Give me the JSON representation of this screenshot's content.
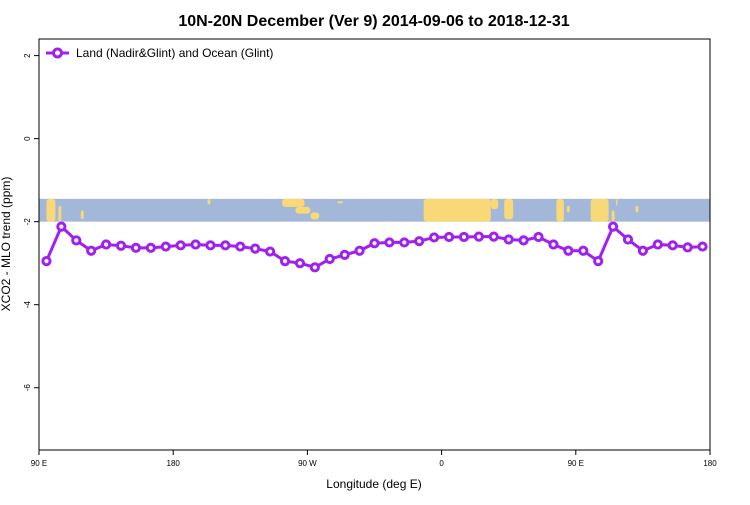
{
  "chart_data": {
    "type": "line",
    "title": "10N-20N December (Ver 9)   2014-09-06 to 2018-12-31",
    "xlabel": "Longitude (deg E)",
    "ylabel": "XCO2 - MLO trend (ppm)",
    "xlim": [
      90,
      540
    ],
    "ylim": [
      -7.5,
      2.4
    ],
    "x_ticks": [
      {
        "value": 90,
        "label": "90 E"
      },
      {
        "value": 180,
        "label": "180"
      },
      {
        "value": 270,
        "label": "90 W"
      },
      {
        "value": 360,
        "label": "0"
      },
      {
        "value": 450,
        "label": "90 E"
      },
      {
        "value": 540,
        "label": "180"
      }
    ],
    "y_ticks": [
      {
        "value": 2,
        "label": "2"
      },
      {
        "value": 0,
        "label": "0"
      },
      {
        "value": -2,
        "label": "-2"
      },
      {
        "value": -4,
        "label": "-4"
      },
      {
        "value": -6,
        "label": "-6"
      }
    ],
    "grid": false,
    "legend_position": "top-left",
    "line_color": "#a020f0",
    "map_ocean_color": "#a3b8d8",
    "map_land_color": "#f9d977",
    "map_band_y_range": [
      -2.0,
      -1.45
    ],
    "series": [
      {
        "name": "Land (Nadir&Glint) and Ocean (Glint)",
        "x": [
          95,
          105,
          115,
          125,
          135,
          145,
          155,
          165,
          175,
          185,
          195,
          205,
          215,
          225,
          235,
          245,
          255,
          265,
          275,
          285,
          295,
          305,
          315,
          325,
          335,
          345,
          355,
          365,
          375,
          385,
          395,
          405,
          415,
          425,
          435,
          445,
          455,
          465,
          475,
          485,
          495,
          505,
          515,
          525,
          535
        ],
        "y": [
          -2.95,
          -2.12,
          -2.45,
          -2.7,
          -2.55,
          -2.58,
          -2.63,
          -2.63,
          -2.6,
          -2.57,
          -2.55,
          -2.57,
          -2.57,
          -2.6,
          -2.65,
          -2.72,
          -2.95,
          -3.0,
          -3.1,
          -2.9,
          -2.8,
          -2.7,
          -2.52,
          -2.5,
          -2.5,
          -2.47,
          -2.38,
          -2.37,
          -2.37,
          -2.36,
          -2.36,
          -2.43,
          -2.45,
          -2.37,
          -2.55,
          -2.7,
          -2.7,
          -2.95,
          -2.12,
          -2.43,
          -2.7,
          -2.55,
          -2.57,
          -2.62,
          -2.6
        ]
      }
    ]
  }
}
